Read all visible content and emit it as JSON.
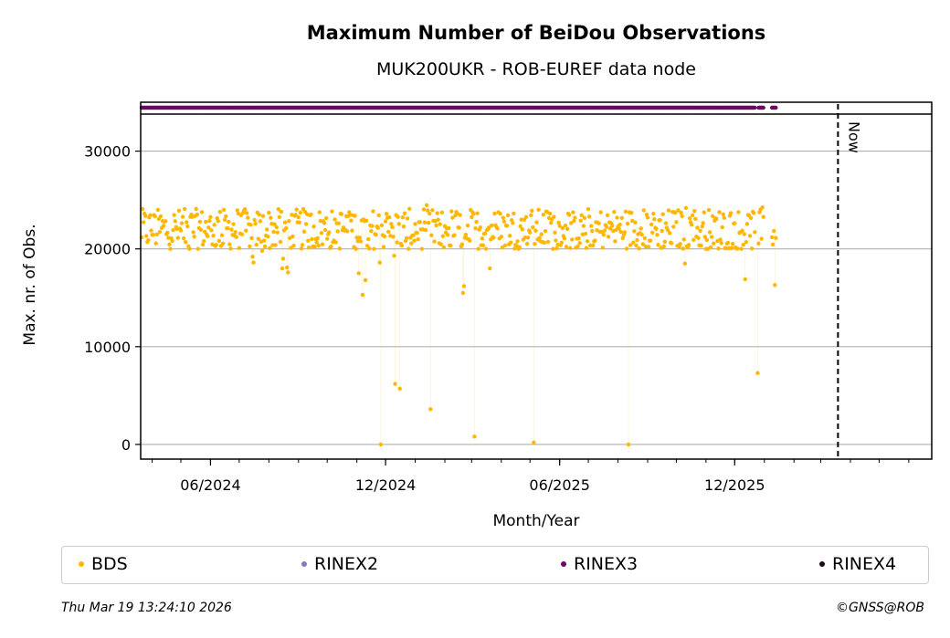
{
  "chart_data": {
    "type": "scatter",
    "title": "Maximum Number of BeiDou Observations",
    "subtitle": "MUK200UKR - ROB-EUREF data node",
    "xlabel": "Month/Year",
    "ylabel": "Max. nr. of Obs.",
    "x_ticks": [
      "06/2024",
      "12/2024",
      "06/2025",
      "12/2025"
    ],
    "y_ticks": [
      "0",
      "10000",
      "20000",
      "30000"
    ],
    "xlim": [
      "2024-03-20",
      "2026-06-25"
    ],
    "ylim": [
      -1500,
      35000
    ],
    "grid": "horizontal",
    "now_marker": {
      "date": "2026-03-19",
      "label": "Now"
    },
    "series": [
      {
        "name": "BDS",
        "color": "#ffb700",
        "typical_range": [
          20000,
          24800
        ],
        "outliers": [
          {
            "x": "2024-07-15",
            "y": 19200
          },
          {
            "x": "2024-07-16",
            "y": 18600
          },
          {
            "x": "2024-07-25",
            "y": 19800
          },
          {
            "x": "2024-08-15",
            "y": 18000
          },
          {
            "x": "2024-08-16",
            "y": 19000
          },
          {
            "x": "2024-08-20",
            "y": 18100
          },
          {
            "x": "2024-08-21",
            "y": 17600
          },
          {
            "x": "2024-11-03",
            "y": 17500
          },
          {
            "x": "2024-11-07",
            "y": 15300
          },
          {
            "x": "2024-11-10",
            "y": 16800
          },
          {
            "x": "2024-11-25",
            "y": 18600
          },
          {
            "x": "2024-11-26",
            "y": 0
          },
          {
            "x": "2024-12-10",
            "y": 19300
          },
          {
            "x": "2024-12-11",
            "y": 6200
          },
          {
            "x": "2024-12-16",
            "y": 5700
          },
          {
            "x": "2025-01-17",
            "y": 3600
          },
          {
            "x": "2025-02-20",
            "y": 15500
          },
          {
            "x": "2025-02-21",
            "y": 16200
          },
          {
            "x": "2025-03-04",
            "y": 800
          },
          {
            "x": "2025-03-20",
            "y": 18000
          },
          {
            "x": "2025-05-05",
            "y": 200
          },
          {
            "x": "2025-08-12",
            "y": 0
          },
          {
            "x": "2025-10-10",
            "y": 18500
          },
          {
            "x": "2025-12-12",
            "y": 16900
          },
          {
            "x": "2025-12-25",
            "y": 7300
          },
          {
            "x": "2026-01-12",
            "y": 16300
          }
        ],
        "last_date": "2026-01-13"
      },
      {
        "name": "RINEX2",
        "color": "#7f7fbf"
      },
      {
        "name": "RINEX3",
        "color": "#6a0a64",
        "band_last_date": "2026-01-13"
      },
      {
        "name": "RINEX4",
        "color": "#1e0a1e"
      }
    ]
  },
  "footer": {
    "timestamp": "Thu Mar 19 13:24:10 2026",
    "credit": "©GNSS@ROB"
  }
}
